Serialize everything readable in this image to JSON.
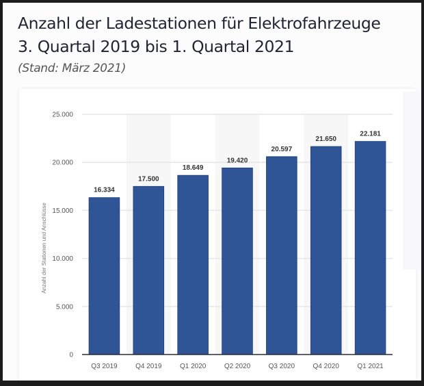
{
  "header": {
    "title_line1": "Anzahl der Ladestationen für Elektrofahrzeuge",
    "title_line2": "3. Quartal 2019 bis 1. Quartal 2021",
    "subtitle": "(Stand: März 2021)"
  },
  "colors": {
    "bar": "#2f5597",
    "bar_edge": "#1f3f7a",
    "grid": "#e6e6e6",
    "alt_band": "#f7f7f7",
    "baseline": "#2b2b3a"
  },
  "chart_data": {
    "type": "bar",
    "title": "Anzahl der Ladestationen für Elektrofahrzeuge 3. Quartal 2019 bis 1. Quartal 2021",
    "subtitle": "(Stand: März 2021)",
    "categories": [
      "Q3 2019",
      "Q4 2019",
      "Q1 2020",
      "Q2 2020",
      "Q3 2020",
      "Q4 2020",
      "Q1 2021"
    ],
    "values": [
      16334,
      17500,
      18649,
      19420,
      20597,
      21650,
      22181
    ],
    "value_labels": [
      "16.334",
      "17.500",
      "18.649",
      "19.420",
      "20.597",
      "21.650",
      "22.181"
    ],
    "xlabel": "",
    "ylabel": "Anzahl der Stationen und Anschlüsse",
    "ylim": [
      0,
      25000
    ],
    "yticks": [
      0,
      5000,
      10000,
      15000,
      20000,
      25000
    ],
    "ytick_labels": [
      "0",
      "5.000",
      "10.000",
      "15.000",
      "20.000",
      "25.000"
    ],
    "grid": true,
    "legend": "none"
  }
}
